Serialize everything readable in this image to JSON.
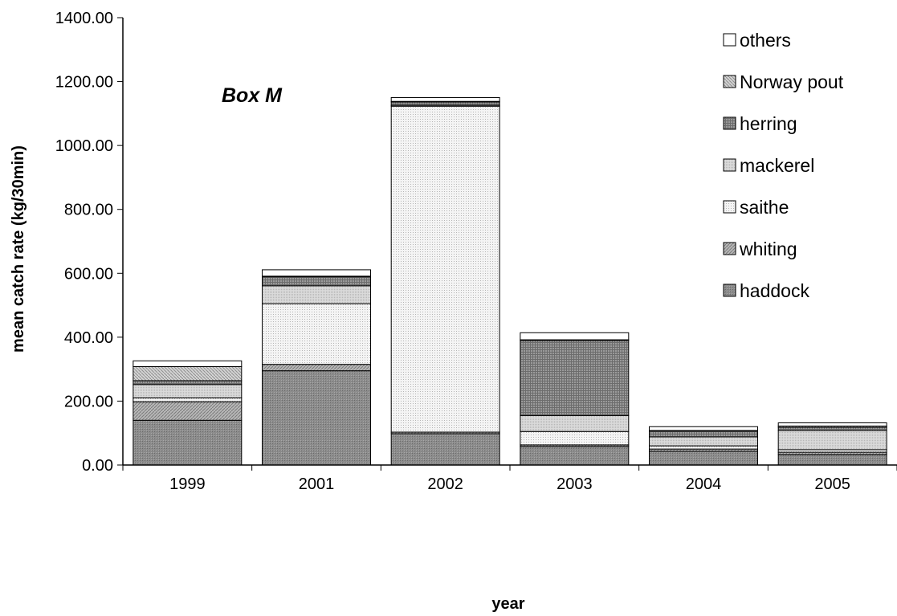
{
  "chart_data": {
    "type": "bar",
    "stacked": true,
    "title": "",
    "annotation": "Box M",
    "xlabel": "year",
    "ylabel": "mean catch rate (kg/30min)",
    "ylim": [
      0,
      1400
    ],
    "yticks": [
      "0.00",
      "200.00",
      "400.00",
      "600.00",
      "800.00",
      "1000.00",
      "1200.00",
      "1400.00"
    ],
    "categories": [
      "1999",
      "2001",
      "2002",
      "2003",
      "2004",
      "2005"
    ],
    "legend_position": "top-right",
    "series": [
      {
        "name": "haddock",
        "color": "#8c8c8c",
        "pattern": "haddock-pattern",
        "values": [
          140,
          295,
          98,
          58,
          43,
          33
        ]
      },
      {
        "name": "whiting",
        "color": "#ababab",
        "pattern": "whiting-pattern",
        "values": [
          58,
          20,
          5,
          5,
          7,
          7
        ]
      },
      {
        "name": "saithe",
        "color": "#ececec",
        "pattern": "saithe-pattern",
        "values": [
          12,
          190,
          1020,
          42,
          10,
          8
        ]
      },
      {
        "name": "mackerel",
        "color": "#cfcfcf",
        "pattern": "mackerel-pattern",
        "values": [
          42,
          56,
          3,
          50,
          28,
          60
        ]
      },
      {
        "name": "herring",
        "color": "#8a8a8a",
        "pattern": "herring-pattern",
        "values": [
          12,
          28,
          10,
          235,
          18,
          10
        ]
      },
      {
        "name": "Norway pout",
        "color": "#c2c2c2",
        "pattern": "pout-pattern",
        "values": [
          44,
          2,
          2,
          2,
          2,
          4
        ]
      },
      {
        "name": "others",
        "color": "#ffffff",
        "pattern": "",
        "values": [
          18,
          20,
          12,
          22,
          12,
          10
        ]
      }
    ]
  }
}
